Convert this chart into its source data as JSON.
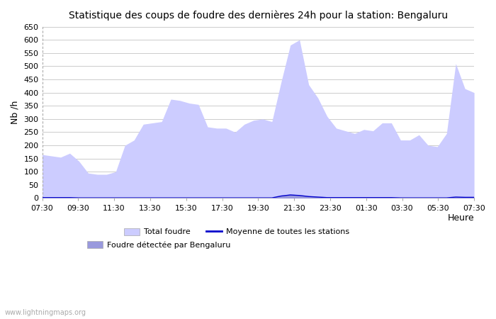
{
  "title": "Statistique des coups de foudre des dernières 24h pour la station: Bengaluru",
  "ylabel": "Nb /h",
  "xlabel": "Heure",
  "watermark": "www.lightningmaps.org",
  "ylim": [
    0,
    650
  ],
  "yticks": [
    0,
    50,
    100,
    150,
    200,
    250,
    300,
    350,
    400,
    450,
    500,
    550,
    600,
    650
  ],
  "x_labels": [
    "07:30",
    "09:30",
    "11:30",
    "13:30",
    "15:30",
    "17:30",
    "19:30",
    "21:30",
    "23:30",
    "01:30",
    "03:30",
    "05:30",
    "07:30"
  ],
  "total_foudre_color": "#ccccff",
  "bengaluru_color": "#9999dd",
  "moyenne_color": "#0000cc",
  "background_color": "#ffffff",
  "grid_color": "#cccccc",
  "total_foudre": [
    165,
    160,
    155,
    170,
    140,
    95,
    90,
    90,
    100,
    200,
    220,
    280,
    285,
    290,
    375,
    370,
    360,
    355,
    270,
    265,
    265,
    250,
    280,
    295,
    300,
    290,
    440,
    580,
    600,
    430,
    380,
    310,
    265,
    255,
    245,
    260,
    255,
    285,
    285,
    220,
    220,
    240,
    200,
    195,
    245,
    510,
    415,
    400
  ],
  "bengaluru": [
    3,
    3,
    3,
    3,
    2,
    2,
    2,
    2,
    2,
    2,
    2,
    2,
    2,
    2,
    2,
    2,
    2,
    2,
    2,
    2,
    2,
    2,
    2,
    2,
    2,
    2,
    10,
    15,
    12,
    8,
    5,
    3,
    3,
    3,
    3,
    3,
    3,
    3,
    3,
    2,
    2,
    2,
    2,
    2,
    2,
    5,
    4,
    4
  ],
  "moyenne": [
    2,
    2,
    2,
    2,
    1,
    1,
    1,
    1,
    1,
    1,
    1,
    1,
    1,
    1,
    1,
    1,
    1,
    1,
    1,
    1,
    1,
    1,
    1,
    1,
    1,
    1,
    8,
    12,
    10,
    6,
    4,
    2,
    2,
    2,
    2,
    2,
    2,
    2,
    2,
    1,
    1,
    1,
    1,
    1,
    1,
    4,
    3,
    3
  ],
  "n_points": 48
}
